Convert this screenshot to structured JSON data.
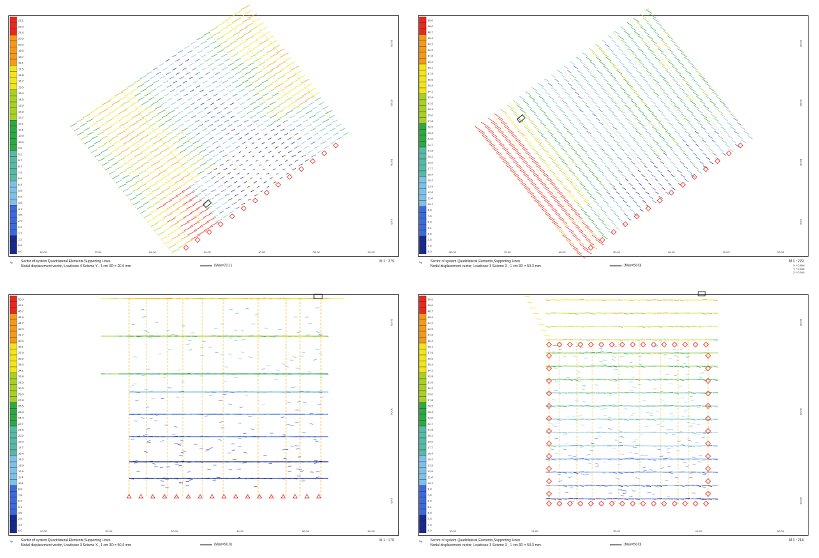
{
  "panels": [
    {
      "id": "p1",
      "view": "iso",
      "caption_line1": "Sector of system Quadrilateral Elements,Supporting Lines",
      "caption_line2": "Nodal displacement vector, Loadcase 4 Seisme Y  , 1 cm 3D = 20.0 mm",
      "max_label": "(Max=23.1)",
      "scale": "M 1 : 279",
      "legend_values": [
        "23.1",
        "22.0",
        "21.4",
        "20.6",
        "20.0",
        "19.5",
        "18.7",
        "18.1",
        "17.5",
        "16.8",
        "16.2",
        "15.6",
        "15.0",
        "14.5",
        "13.9",
        "13.3",
        "12.7",
        "12.1",
        "11.5",
        "10.9",
        "10.4",
        "9.8",
        "9.2",
        "8.7",
        "8.1",
        "7.5",
        "6.9",
        "6.4",
        "5.8",
        "5.2",
        "4.6",
        "4.1",
        "3.5",
        "2.9",
        "2.3",
        "1.7",
        "1.2",
        "0.6",
        "0.0"
      ],
      "x_ticks": [
        "80.00",
        "70.00",
        "60.00",
        "50.00",
        "40.00",
        "30.00",
        "20.00"
      ],
      "y_ticks": [
        "30.00",
        "20.00",
        "10.00",
        "0.00"
      ],
      "coords": []
    },
    {
      "id": "p2",
      "view": "iso",
      "caption_line1": "Sector of system Quadrilateral Elements,Supporting Lines",
      "caption_line2": "Nodal displacement vector, Loadcase 3 Seisme X  , 1 cm 3D = 50.0 mm",
      "max_label": "(Max=50.0)",
      "scale": "M 1 : 279",
      "legend_values": [
        "50.0",
        "48.0",
        "46.7",
        "45.4",
        "44.2",
        "42.9",
        "41.6",
        "40.4",
        "39.1",
        "37.9",
        "36.6",
        "35.4",
        "34.1",
        "32.8",
        "31.6",
        "30.3",
        "29.0",
        "27.8",
        "26.5",
        "25.3",
        "24.0",
        "22.7",
        "21.5",
        "20.2",
        "19.0",
        "17.7",
        "16.4",
        "15.2",
        "13.9",
        "12.6",
        "11.4",
        "10.1",
        "8.8",
        "7.6",
        "6.3",
        "5.1",
        "3.8",
        "2.5",
        "1.3",
        "0.0"
      ],
      "x_ticks": [
        "80.00",
        "70.00",
        "60.00",
        "50.00",
        "40.00",
        "30.00",
        "20.00"
      ],
      "y_ticks": [
        "30.00",
        "20.00",
        "10.00",
        "0.00"
      ],
      "coords": [
        "X * 0.906",
        "Y * 0.906",
        "Z * 0.940"
      ]
    },
    {
      "id": "p3",
      "view": "plan",
      "caption_line1": "Sector of system Quadrilateral Elements,Supporting Lines",
      "caption_line2": "Nodal displacement vector, Loadcase 3 Seisme X  , 1 cm 3D = 50.0 mm",
      "max_label": "(Max=50.0)",
      "scale": "M 1 : 170",
      "legend_values": [
        "50.0",
        "49.1",
        "46.7",
        "45.4",
        "44.2",
        "42.9",
        "41.7",
        "40.4",
        "39.1",
        "37.9",
        "36.6",
        "35.4",
        "34.1",
        "32.8",
        "31.6",
        "30.3",
        "29.0",
        "27.8",
        "26.5",
        "25.3",
        "24.0",
        "22.7",
        "21.5",
        "20.2",
        "19.0",
        "17.7",
        "16.4",
        "15.2",
        "13.9",
        "12.6",
        "11.4",
        "10.1",
        "8.8",
        "7.6",
        "6.3",
        "5.1",
        "3.8",
        "2.5",
        "1.3",
        "0.0"
      ],
      "x_ticks": [
        "10.00",
        "20.00",
        "30.00",
        "40.00",
        "50.00",
        "60.00"
      ],
      "y_ticks": [
        "20.00",
        "10.00",
        "0.00"
      ],
      "coords": []
    },
    {
      "id": "p4",
      "view": "plan",
      "caption_line1": "Sector of system Quadrilateral Elements,Supporting Lines",
      "caption_line2": "Nodal displacement vector, Loadcase 3 Seisme X  , 1 cm 3D = 50.0 mm",
      "max_label": "(Max=50.0)",
      "scale": "M 1 : 214",
      "legend_values": [
        "50.0",
        "49.0",
        "46.7",
        "45.4",
        "44.2",
        "42.9",
        "41.6",
        "40.4",
        "39.1",
        "37.9",
        "36.6",
        "35.4",
        "34.1",
        "32.8",
        "31.6",
        "30.3",
        "29.0",
        "27.8",
        "26.5",
        "25.3",
        "24.0",
        "22.7",
        "21.5",
        "20.2",
        "19.0",
        "17.7",
        "16.4",
        "15.2",
        "13.9",
        "12.6",
        "11.4",
        "10.1",
        "8.8",
        "7.6",
        "6.3",
        "5.1",
        "3.8",
        "2.5",
        "1.3",
        "0.0"
      ],
      "x_ticks": [
        "10.00",
        "20.00",
        "30.00",
        "40.00",
        "50.00"
      ],
      "y_ticks": [
        "40.00",
        "30.00",
        "20.00"
      ],
      "coords": []
    }
  ],
  "colors": {
    "red": "#e8281e",
    "orange": "#f39a1c",
    "yellow": "#f2e51c",
    "lime": "#a8d026",
    "green": "#2ea843",
    "teal": "#58b9a6",
    "lightblue": "#7fc0e6",
    "blue": "#3d6ad8",
    "navy": "#1a2a8a",
    "support": "#e8281e",
    "gridline": "#f0b400"
  }
}
